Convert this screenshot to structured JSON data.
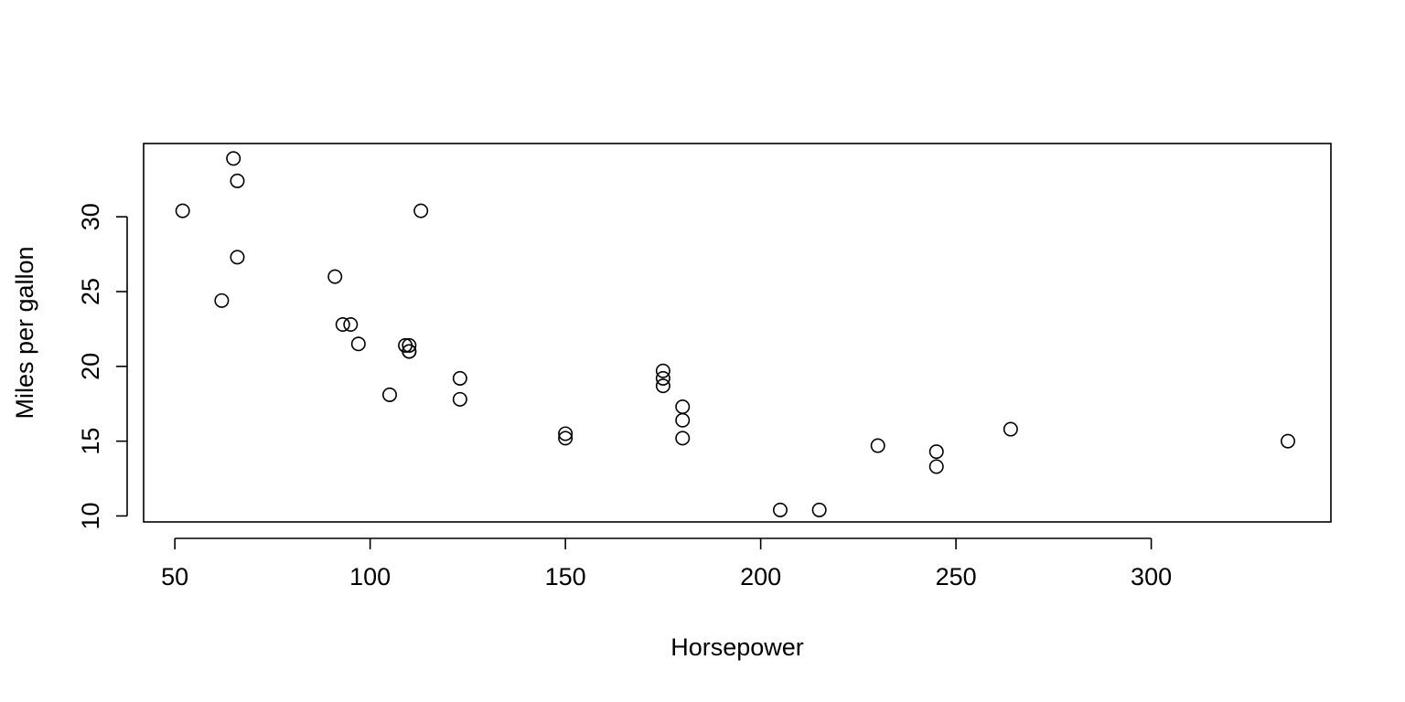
{
  "chart_data": {
    "type": "scatter",
    "title": "",
    "xlabel": "Horsepower",
    "ylabel": "Miles per gallon",
    "xlim": [
      42,
      346
    ],
    "ylim": [
      9.6,
      34.9
    ],
    "xticks": [
      50,
      100,
      150,
      200,
      250,
      300
    ],
    "yticks": [
      10,
      15,
      20,
      25,
      30
    ],
    "grid": false,
    "legend": "none",
    "point_style": "open-circle",
    "colors": {
      "points": "#000000",
      "axes": "#000000",
      "background": "#ffffff"
    },
    "points": [
      {
        "x": 110,
        "y": 21.0
      },
      {
        "x": 110,
        "y": 21.0
      },
      {
        "x": 93,
        "y": 22.8
      },
      {
        "x": 110,
        "y": 21.4
      },
      {
        "x": 175,
        "y": 18.7
      },
      {
        "x": 105,
        "y": 18.1
      },
      {
        "x": 245,
        "y": 14.3
      },
      {
        "x": 62,
        "y": 24.4
      },
      {
        "x": 95,
        "y": 22.8
      },
      {
        "x": 123,
        "y": 19.2
      },
      {
        "x": 123,
        "y": 17.8
      },
      {
        "x": 180,
        "y": 16.4
      },
      {
        "x": 180,
        "y": 17.3
      },
      {
        "x": 180,
        "y": 15.2
      },
      {
        "x": 205,
        "y": 10.4
      },
      {
        "x": 215,
        "y": 10.4
      },
      {
        "x": 230,
        "y": 14.7
      },
      {
        "x": 66,
        "y": 32.4
      },
      {
        "x": 52,
        "y": 30.4
      },
      {
        "x": 65,
        "y": 33.9
      },
      {
        "x": 97,
        "y": 21.5
      },
      {
        "x": 150,
        "y": 15.5
      },
      {
        "x": 150,
        "y": 15.2
      },
      {
        "x": 245,
        "y": 13.3
      },
      {
        "x": 175,
        "y": 19.2
      },
      {
        "x": 66,
        "y": 27.3
      },
      {
        "x": 91,
        "y": 26.0
      },
      {
        "x": 113,
        "y": 30.4
      },
      {
        "x": 264,
        "y": 15.8
      },
      {
        "x": 175,
        "y": 19.7
      },
      {
        "x": 335,
        "y": 15.0
      },
      {
        "x": 109,
        "y": 21.4
      }
    ]
  }
}
